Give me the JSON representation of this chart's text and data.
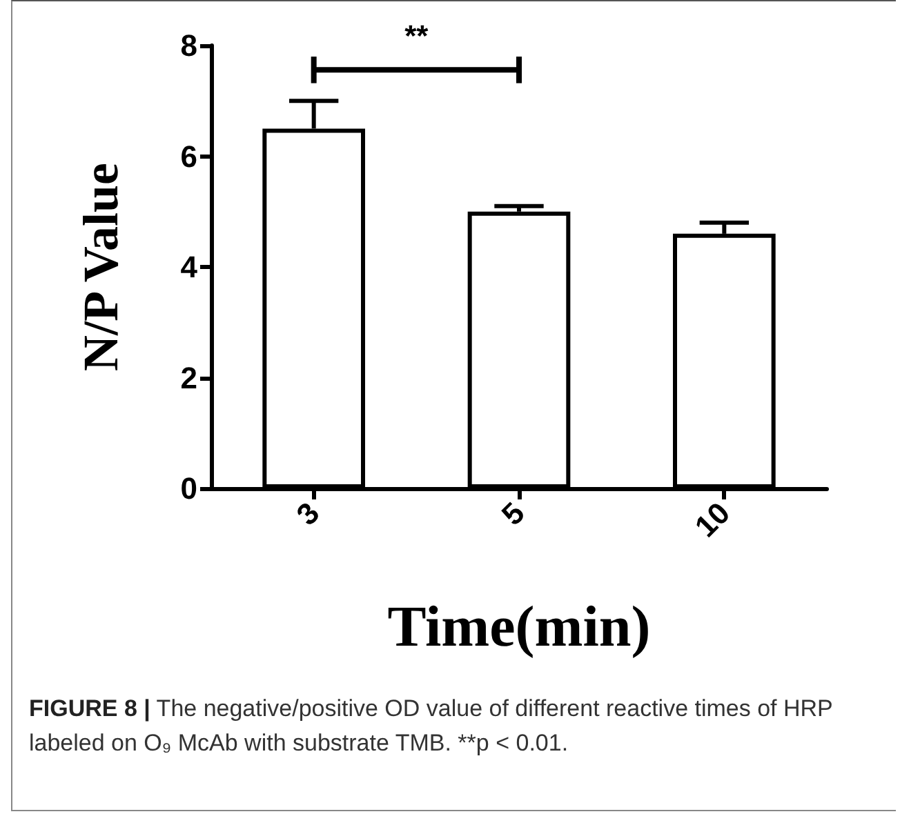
{
  "chart_data": {
    "type": "bar",
    "xlabel": "Time(min)",
    "ylabel": "N/P Value",
    "categories": [
      "3",
      "5",
      "10"
    ],
    "values": [
      6.5,
      5.0,
      4.6
    ],
    "errors": [
      0.5,
      0.1,
      0.2
    ],
    "color": "#ffffff",
    "ylim": [
      0,
      8
    ],
    "yticks": [
      0,
      2,
      4,
      6,
      8
    ],
    "grid": false,
    "annotations": [
      "**",
      "FIGURE 8 | The negative/positive OD value of different reactive times of HRP labeled on O₉ McAb with substrate TMB. **p < 0.01."
    ]
  }
}
